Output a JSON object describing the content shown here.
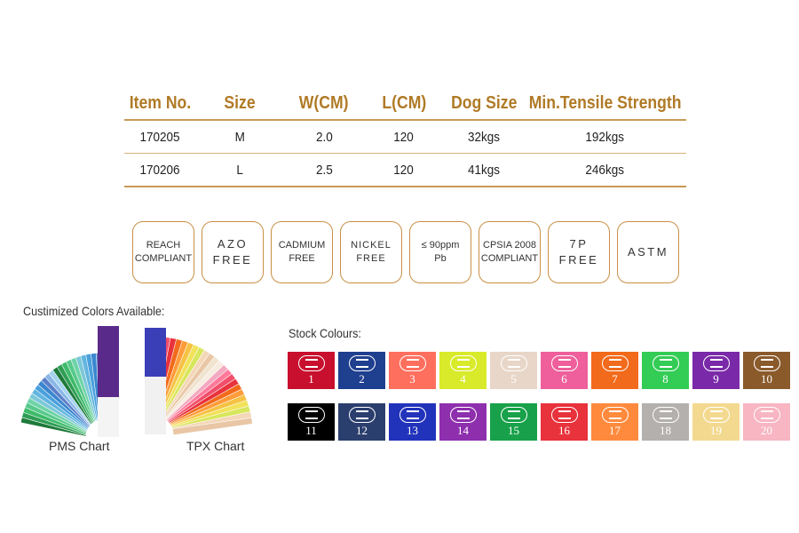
{
  "spec_table": {
    "headers": [
      "Item No.",
      "Size",
      "W(CM)",
      "L(CM)",
      "Dog Size",
      "Min.Tensile Strength"
    ],
    "rows": [
      [
        "170205",
        "M",
        "2.0",
        "120",
        "32kgs",
        "192kgs"
      ],
      [
        "170206",
        "L",
        "2.5",
        "120",
        "41kgs",
        "246kgs"
      ]
    ]
  },
  "badges": [
    {
      "lines": [
        "REACH",
        "COMPLIANT"
      ],
      "wide": false
    },
    {
      "lines": [
        "AZO",
        "FREE"
      ],
      "wide": true
    },
    {
      "lines": [
        "CADMIUM",
        "FREE"
      ],
      "wide": false
    },
    {
      "lines": [
        "NICKEL",
        "FREE"
      ],
      "wide": false
    },
    {
      "lines": [
        "≤ 90ppm",
        "Pb"
      ],
      "wide": false
    },
    {
      "lines": [
        "CPSIA 2008",
        "COMPLIANT"
      ],
      "wide": false
    },
    {
      "lines": [
        "7P",
        "FREE"
      ],
      "wide": true
    },
    {
      "lines": [
        "ASTM"
      ],
      "wide": true
    }
  ],
  "custom_colors": {
    "title": "Custimized Colors Available:",
    "pms_label": "PMS Chart",
    "tpx_label": "TPX Chart"
  },
  "stock_colours": {
    "title": "Stock Colours:",
    "logo_icon": "coco-pets-logo-icon",
    "swatches": [
      {
        "num": "1",
        "color": "#c8102e"
      },
      {
        "num": "2",
        "color": "#1f3f8f"
      },
      {
        "num": "3",
        "color": "#ff6f5e"
      },
      {
        "num": "4",
        "color": "#d9ea2a"
      },
      {
        "num": "5",
        "color": "#e8d6c8"
      },
      {
        "num": "6",
        "color": "#ee5f9b"
      },
      {
        "num": "7",
        "color": "#f26a1b"
      },
      {
        "num": "8",
        "color": "#33cc55"
      },
      {
        "num": "9",
        "color": "#7a2aa8"
      },
      {
        "num": "10",
        "color": "#8a5a2b"
      },
      {
        "num": "11",
        "color": "#000000"
      },
      {
        "num": "12",
        "color": "#2b3f6e"
      },
      {
        "num": "13",
        "color": "#2233bb"
      },
      {
        "num": "14",
        "color": "#8e2fae"
      },
      {
        "num": "15",
        "color": "#18a14a"
      },
      {
        "num": "16",
        "color": "#e8323c"
      },
      {
        "num": "17",
        "color": "#ff8a3d"
      },
      {
        "num": "18",
        "color": "#b3b0ad"
      },
      {
        "num": "19",
        "color": "#f3d98f"
      },
      {
        "num": "20",
        "color": "#f7b6c2"
      }
    ]
  }
}
